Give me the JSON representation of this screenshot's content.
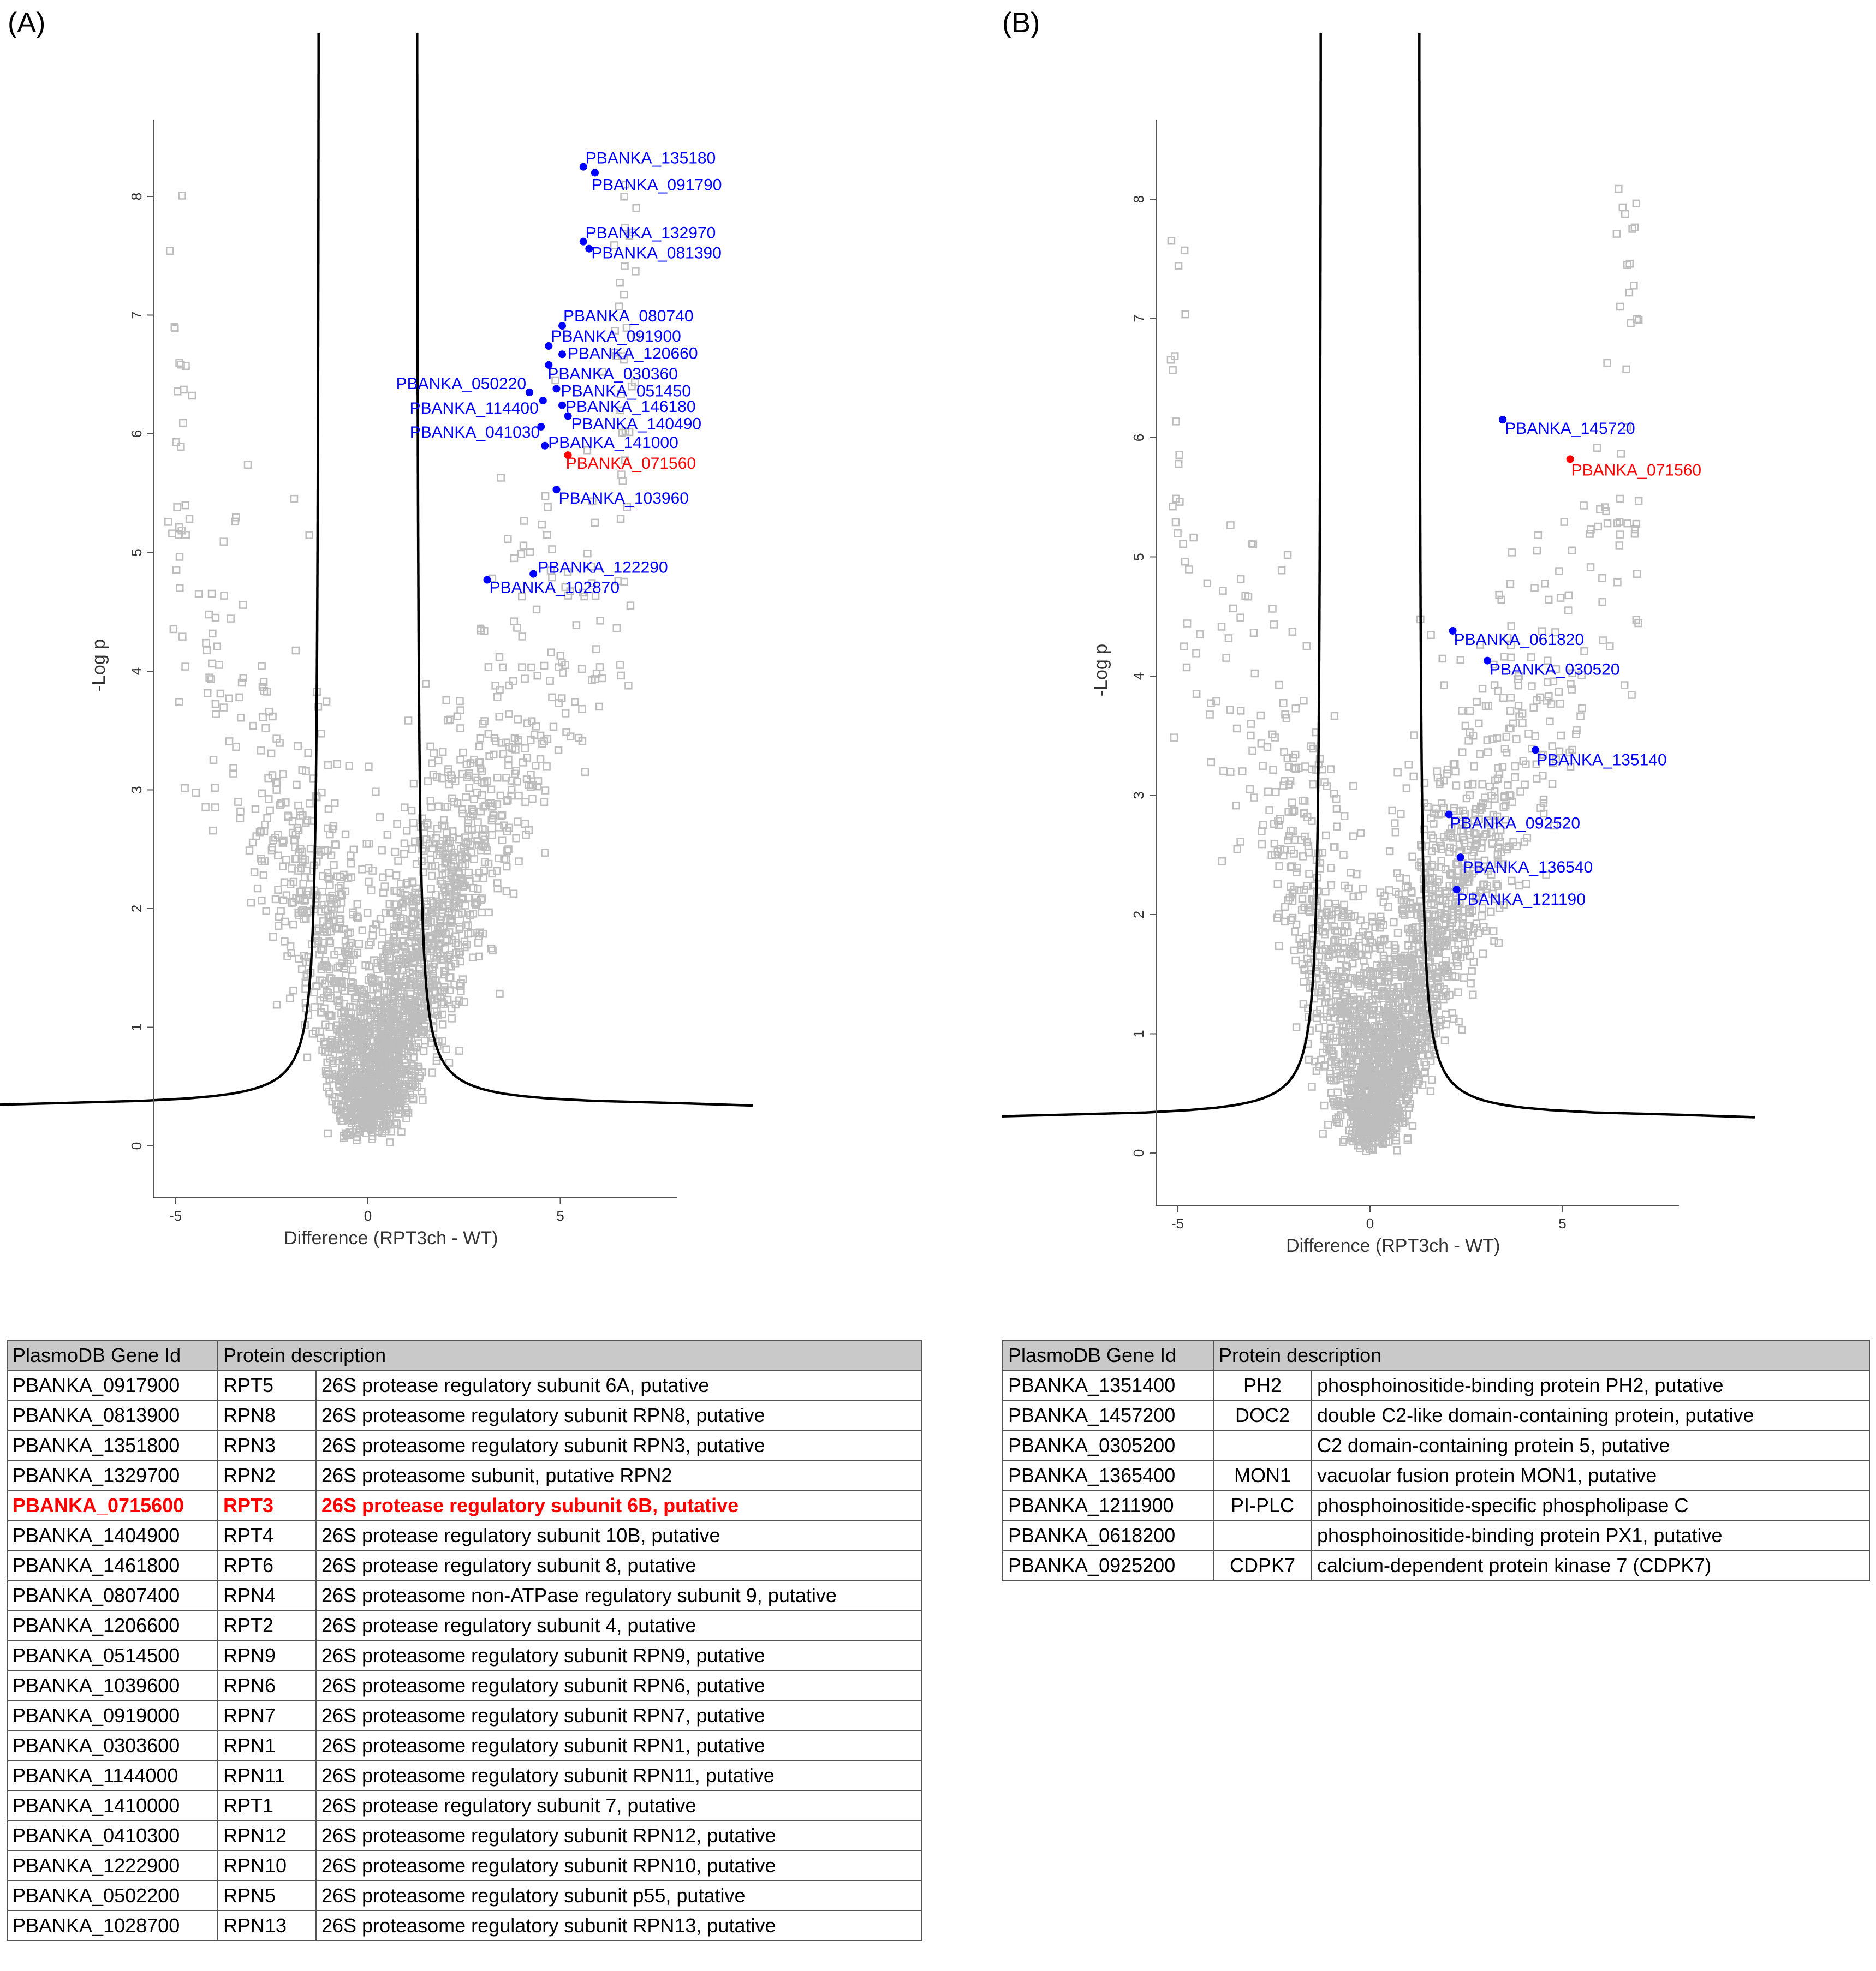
{
  "panels": [
    {
      "id": "A",
      "label": "(A)",
      "chart_data": {
        "type": "scatter",
        "title": "",
        "xlabel": "Difference (RPT3ch - WT)",
        "ylabel": "-Log p",
        "xlim": [
          -6,
          8
        ],
        "ylim": [
          -0.4,
          8.7
        ],
        "xticks": [
          -5,
          0,
          5
        ],
        "yticks": [
          0,
          1,
          2,
          3,
          4,
          5,
          6,
          7,
          8
        ],
        "threshold_curve": {
          "s0": 1.25,
          "c": 1.1,
          "ymin": 0.34
        },
        "background_series": {
          "name": "all proteins",
          "marker": "open square",
          "color": "#bdbdbd",
          "count": 2300
        },
        "highlighted": [
          {
            "label": "PBANKA_135180",
            "x": 5.6,
            "y": 8.25,
            "color": "#0000ff"
          },
          {
            "label": "PBANKA_091790",
            "x": 5.9,
            "y": 8.2,
            "color": "#0000ff"
          },
          {
            "label": "PBANKA_132970",
            "x": 5.6,
            "y": 7.62,
            "color": "#0000ff"
          },
          {
            "label": "PBANKA_081390",
            "x": 5.75,
            "y": 7.56,
            "color": "#0000ff"
          },
          {
            "label": "PBANKA_080740",
            "x": 5.05,
            "y": 6.91,
            "color": "#0000ff"
          },
          {
            "label": "PBANKA_091900",
            "x": 4.7,
            "y": 6.74,
            "color": "#0000ff"
          },
          {
            "label": "PBANKA_120660",
            "x": 5.05,
            "y": 6.67,
            "color": "#0000ff"
          },
          {
            "label": "PBANKA_030360",
            "x": 4.7,
            "y": 6.58,
            "color": "#0000ff"
          },
          {
            "label": "PBANKA_050220",
            "x": 4.2,
            "y": 6.35,
            "color": "#0000ff"
          },
          {
            "label": "PBANKA_051450",
            "x": 4.9,
            "y": 6.38,
            "color": "#0000ff"
          },
          {
            "label": "PBANKA_114400",
            "x": 4.55,
            "y": 6.28,
            "color": "#0000ff"
          },
          {
            "label": "PBANKA_146180",
            "x": 5.05,
            "y": 6.24,
            "color": "#0000ff"
          },
          {
            "label": "PBANKA_140490",
            "x": 5.2,
            "y": 6.15,
            "color": "#0000ff"
          },
          {
            "label": "PBANKA_041030",
            "x": 4.5,
            "y": 6.06,
            "color": "#0000ff"
          },
          {
            "label": "PBANKA_141000",
            "x": 4.6,
            "y": 5.9,
            "color": "#0000ff"
          },
          {
            "label": "PBANKA_071560",
            "x": 5.2,
            "y": 5.82,
            "color": "#ff0000"
          },
          {
            "label": "PBANKA_103960",
            "x": 4.9,
            "y": 5.53,
            "color": "#0000ff"
          },
          {
            "label": "PBANKA_122290",
            "x": 4.3,
            "y": 4.82,
            "color": "#0000ff"
          },
          {
            "label": "PBANKA_102870",
            "x": 3.1,
            "y": 4.77,
            "color": "#0000ff"
          }
        ]
      },
      "table": {
        "headers": [
          "PlasmoDB Gene Id",
          "Protein description"
        ],
        "rows": [
          {
            "gene": "PBANKA_0917900",
            "symbol": "RPT5",
            "desc": "26S protease regulatory subunit 6A, putative",
            "hl": false
          },
          {
            "gene": "PBANKA_0813900",
            "symbol": "RPN8",
            "desc": "26S proteasome regulatory subunit RPN8, putative",
            "hl": false
          },
          {
            "gene": "PBANKA_1351800",
            "symbol": "RPN3",
            "desc": "26S proteasome regulatory subunit RPN3, putative",
            "hl": false
          },
          {
            "gene": "PBANKA_1329700",
            "symbol": "RPN2",
            "desc": "26S proteasome subunit, putative RPN2",
            "hl": false
          },
          {
            "gene": "PBANKA_0715600",
            "symbol": "RPT3",
            "desc": "26S protease regulatory subunit 6B, putative",
            "hl": true
          },
          {
            "gene": "PBANKA_1404900",
            "symbol": "RPT4",
            "desc": "26S protease regulatory subunit 10B, putative",
            "hl": false
          },
          {
            "gene": "PBANKA_1461800",
            "symbol": "RPT6",
            "desc": "26S protease regulatory subunit 8, putative",
            "hl": false
          },
          {
            "gene": "PBANKA_0807400",
            "symbol": "RPN4",
            "desc": "26S proteasome non-ATPase regulatory subunit 9, putative",
            "hl": false
          },
          {
            "gene": "PBANKA_1206600",
            "symbol": "RPT2",
            "desc": "26S protease regulatory subunit 4, putative",
            "hl": false
          },
          {
            "gene": "PBANKA_0514500",
            "symbol": "RPN9",
            "desc": "26S proteasome regulatory subunit RPN9, putative",
            "hl": false
          },
          {
            "gene": "PBANKA_1039600",
            "symbol": "RPN6",
            "desc": "26S proteasome regulatory subunit RPN6, putative",
            "hl": false
          },
          {
            "gene": "PBANKA_0919000",
            "symbol": "RPN7",
            "desc": "26S proteasome regulatory subunit RPN7, putative",
            "hl": false
          },
          {
            "gene": "PBANKA_0303600",
            "symbol": "RPN1",
            "desc": "26S proteasome regulatory subunit RPN1, putative",
            "hl": false
          },
          {
            "gene": "PBANKA_1144000",
            "symbol": "RPN11",
            "desc": "26S proteasome regulatory subunit RPN11, putative",
            "hl": false
          },
          {
            "gene": "PBANKA_1410000",
            "symbol": "RPT1",
            "desc": "26S protease regulatory subunit 7, putative",
            "hl": false
          },
          {
            "gene": "PBANKA_0410300",
            "symbol": "RPN12",
            "desc": "26S proteasome regulatory subunit RPN12, putative",
            "hl": false
          },
          {
            "gene": "PBANKA_1222900",
            "symbol": "RPN10",
            "desc": "26S proteasome regulatory subunit RPN10, putative",
            "hl": false
          },
          {
            "gene": "PBANKA_0502200",
            "symbol": "RPN5",
            "desc": "26S proteasome regulatory subunit p55, putative",
            "hl": false
          },
          {
            "gene": "PBANKA_1028700",
            "symbol": "RPN13",
            "desc": "26S proteasome regulatory subunit RPN13, putative",
            "hl": false
          }
        ]
      }
    },
    {
      "id": "B",
      "label": "(B)",
      "chart_data": {
        "type": "scatter",
        "title": "",
        "xlabel": "Difference (RPT3ch - WT)",
        "ylabel": "-Log p",
        "xlim": [
          -6,
          8
        ],
        "ylim": [
          -0.4,
          8.7
        ],
        "xticks": [
          -5,
          0,
          5
        ],
        "yticks": [
          0,
          1,
          2,
          3,
          4,
          5,
          6,
          7,
          8
        ],
        "threshold_curve": {
          "s0": 1.25,
          "c": 1.1,
          "ymin": 0.3
        },
        "background_series": {
          "name": "all proteins",
          "marker": "open square",
          "color": "#bdbdbd",
          "count": 2300
        },
        "highlighted": [
          {
            "label": "PBANKA_145720",
            "x": 3.45,
            "y": 6.15,
            "color": "#0000ff"
          },
          {
            "label": "PBANKA_071560",
            "x": 5.2,
            "y": 5.82,
            "color": "#ff0000"
          },
          {
            "label": "PBANKA_061820",
            "x": 2.15,
            "y": 4.38,
            "color": "#0000ff"
          },
          {
            "label": "PBANKA_030520",
            "x": 3.05,
            "y": 4.13,
            "color": "#0000ff"
          },
          {
            "label": "PBANKA_135140",
            "x": 4.3,
            "y": 3.38,
            "color": "#0000ff"
          },
          {
            "label": "PBANKA_092520",
            "x": 2.05,
            "y": 2.84,
            "color": "#0000ff"
          },
          {
            "label": "PBANKA_136540",
            "x": 2.35,
            "y": 2.48,
            "color": "#0000ff"
          },
          {
            "label": "PBANKA_121190",
            "x": 2.25,
            "y": 2.21,
            "color": "#0000ff"
          }
        ]
      },
      "table": {
        "headers": [
          "PlasmoDB Gene Id",
          "Protein description"
        ],
        "rows": [
          {
            "gene": "PBANKA_1351400",
            "symbol": "PH2",
            "desc": "phosphoinositide-binding protein PH2, putative",
            "hl": false
          },
          {
            "gene": "PBANKA_1457200",
            "symbol": "DOC2",
            "desc": "double C2-like domain-containing protein, putative",
            "hl": false
          },
          {
            "gene": "PBANKA_0305200",
            "symbol": "",
            "desc": "C2 domain-containing protein 5, putative",
            "hl": false
          },
          {
            "gene": "PBANKA_1365400",
            "symbol": "MON1",
            "desc": "vacuolar fusion protein MON1, putative",
            "hl": false
          },
          {
            "gene": "PBANKA_1211900",
            "symbol": "PI-PLC",
            "desc": "phosphoinositide-specific phospholipase C",
            "hl": false
          },
          {
            "gene": "PBANKA_0618200",
            "symbol": "",
            "desc": "phosphoinositide-binding protein PX1, putative",
            "hl": false
          },
          {
            "gene": "PBANKA_0925200",
            "symbol": "CDPK7",
            "desc": "calcium-dependent protein kinase 7 (CDPK7)",
            "hl": false
          }
        ]
      }
    }
  ]
}
